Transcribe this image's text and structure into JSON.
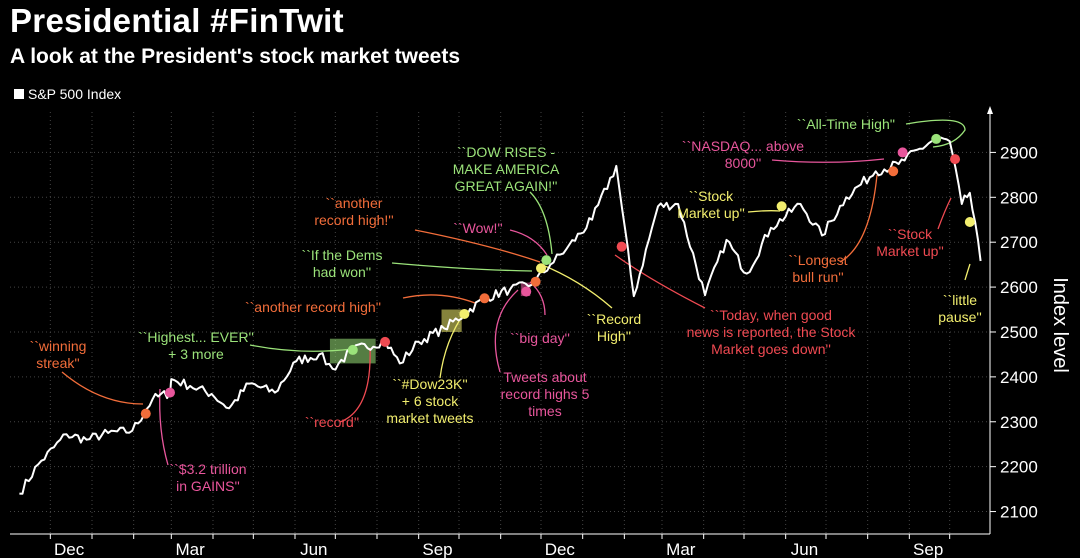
{
  "colors": {
    "green": "#9be37a",
    "yellow": "#f2ee6e",
    "orange": "#f26d3a",
    "pink": "#e8569c",
    "red": "#f04a52",
    "line": "#ffffff",
    "grid": "#444444"
  },
  "chart_data": {
    "type": "line",
    "title": "Presidential #FinTwit",
    "subtitle": "A look at the President's stock market tweets",
    "ylabel": "Index level",
    "legend": [
      "S&P 500 Index"
    ],
    "legend_placement": "top-left",
    "ylim": [
      2050,
      2990
    ],
    "yticks": [
      "2100",
      "2200",
      "2300",
      "2400",
      "2500",
      "2600",
      "2700",
      "2800",
      "2900"
    ],
    "xticks": [
      "Dec",
      "Mar",
      "Jun",
      "Sep",
      "Dec",
      "Mar",
      "Jun",
      "Sep"
    ],
    "x_start": "2016-11",
    "x_end": "2018-10",
    "series": [
      {
        "name": "S&P 500 Index",
        "x": [
          "2016-11-08",
          "2016-11-22",
          "2016-12-13",
          "2016-12-28",
          "2017-01-13",
          "2017-01-31",
          "2017-02-15",
          "2017-02-28",
          "2017-03-01",
          "2017-03-15",
          "2017-03-31",
          "2017-04-13",
          "2017-04-28",
          "2017-05-17",
          "2017-06-02",
          "2017-06-19",
          "2017-06-29",
          "2017-07-14",
          "2017-08-07",
          "2017-08-18",
          "2017-09-01",
          "2017-09-20",
          "2017-10-05",
          "2017-10-20",
          "2017-11-08",
          "2017-11-24",
          "2017-12-08",
          "2017-12-20",
          "2018-01-08",
          "2018-01-26",
          "2018-02-08",
          "2018-02-26",
          "2018-03-13",
          "2018-04-02",
          "2018-04-18",
          "2018-05-03",
          "2018-05-21",
          "2018-06-12",
          "2018-06-28",
          "2018-07-16",
          "2018-08-07",
          "2018-08-24",
          "2018-09-20",
          "2018-10-01",
          "2018-10-10",
          "2018-10-16",
          "2018-10-24"
        ],
        "y": [
          2140,
          2205,
          2272,
          2260,
          2275,
          2280,
          2350,
          2365,
          2395,
          2380,
          2362,
          2330,
          2385,
          2365,
          2435,
          2450,
          2418,
          2460,
          2480,
          2430,
          2478,
          2508,
          2540,
          2575,
          2595,
          2605,
          2650,
          2685,
          2750,
          2870,
          2580,
          2780,
          2785,
          2582,
          2705,
          2630,
          2732,
          2785,
          2715,
          2800,
          2858,
          2874,
          2930,
          2925,
          2785,
          2810,
          2658
        ]
      }
    ],
    "markers": [
      {
        "date": "2017-02-10",
        "value": 2318,
        "color": "orange"
      },
      {
        "date": "2017-02-28",
        "value": 2365,
        "color": "pink"
      },
      {
        "date": "2017-07-14",
        "value": 2460,
        "color": "green"
      },
      {
        "date": "2017-08-07",
        "value": 2478,
        "color": "red"
      },
      {
        "date": "2017-10-05",
        "value": 2540,
        "color": "yellow"
      },
      {
        "date": "2017-10-20",
        "value": 2575,
        "color": "orange"
      },
      {
        "date": "2017-11-20",
        "value": 2590,
        "color": "pink"
      },
      {
        "date": "2017-11-27",
        "value": 2612,
        "color": "orange"
      },
      {
        "date": "2017-12-01",
        "value": 2642,
        "color": "yellow"
      },
      {
        "date": "2017-12-05",
        "value": 2660,
        "color": "green"
      },
      {
        "date": "2018-01-30",
        "value": 2690,
        "color": "red"
      },
      {
        "date": "2018-05-29",
        "value": 2780,
        "color": "yellow"
      },
      {
        "date": "2018-08-20",
        "value": 2858,
        "color": "orange"
      },
      {
        "date": "2018-08-27",
        "value": 2900,
        "color": "pink"
      },
      {
        "date": "2018-09-21",
        "value": 2930,
        "color": "green"
      },
      {
        "date": "2018-10-05",
        "value": 2885,
        "color": "red"
      },
      {
        "date": "2018-10-16",
        "value": 2745,
        "color": "yellow"
      }
    ],
    "shaded_boxes": [
      {
        "x0": "2017-06-27",
        "x1": "2017-07-31",
        "y0": "2430",
        "y1": "2485",
        "color": "green"
      },
      {
        "x0": "2017-09-18",
        "x1": "2017-10-03",
        "y0": "2500",
        "y1": "2550",
        "color": "yellow"
      },
      {
        "x0": "2017-11-16",
        "x1": "2017-11-23",
        "y0": "2580",
        "y1": "2610",
        "color": "pink"
      }
    ],
    "annotations": [
      {
        "text": [
          "``winning",
          "streak''"
        ],
        "color": "orange"
      },
      {
        "text": [
          "``$3.2 trillion",
          "in GAINS''"
        ],
        "color": "pink"
      },
      {
        "text": [
          "``Highest... EVER''",
          "+ 3 more"
        ],
        "color": "green"
      },
      {
        "text": [
          "``record''"
        ],
        "color": "red"
      },
      {
        "text": [
          "``another record high''"
        ],
        "color": "orange"
      },
      {
        "text": [
          "``#Dow23K''",
          "+ 6 stock",
          "market tweets"
        ],
        "color": "yellow"
      },
      {
        "text": [
          "``If the Dems",
          "had won''"
        ],
        "color": "green"
      },
      {
        "text": [
          "``another",
          "record high!''"
        ],
        "color": "orange"
      },
      {
        "text": [
          "``Wow!''"
        ],
        "color": "pink"
      },
      {
        "text": [
          "``DOW RISES -",
          "MAKE AMERICA",
          "GREAT AGAIN!''"
        ],
        "color": "green"
      },
      {
        "text": [
          "``big day''"
        ],
        "color": "pink"
      },
      {
        "text": [
          "Tweets about",
          "record highs 5",
          "times"
        ],
        "color": "pink"
      },
      {
        "text": [
          "``Record",
          "High''"
        ],
        "color": "yellow"
      },
      {
        "text": [
          "``Today, when good",
          "news is reported, the Stock",
          "Market goes down''"
        ],
        "color": "red"
      },
      {
        "text": [
          "``Stock",
          "Market up''"
        ],
        "color": "yellow"
      },
      {
        "text": [
          "``Longest",
          "bull run''"
        ],
        "color": "orange"
      },
      {
        "text": [
          "``NASDAQ... above",
          "8000''"
        ],
        "color": "pink"
      },
      {
        "text": [
          "``All-Time High''"
        ],
        "color": "green"
      },
      {
        "text": [
          "``Stock",
          "Market up''"
        ],
        "color": "red"
      },
      {
        "text": [
          "``little",
          "pause''"
        ],
        "color": "yellow"
      }
    ]
  }
}
